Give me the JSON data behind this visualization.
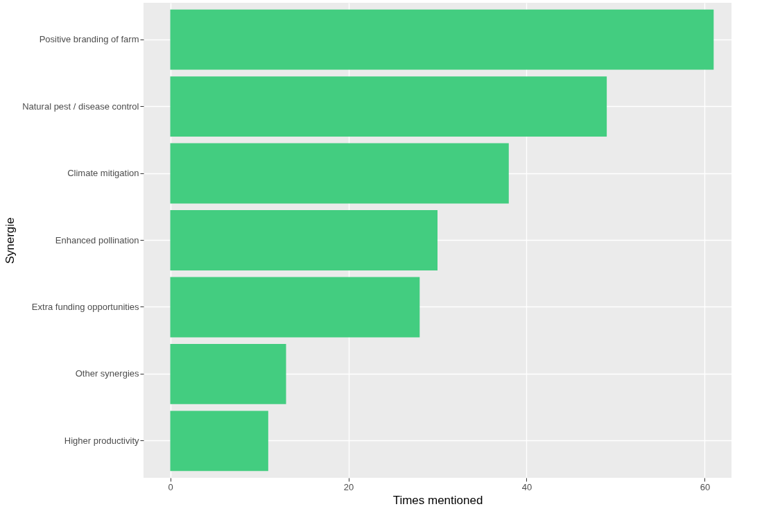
{
  "chart_data": {
    "type": "bar",
    "orientation": "horizontal",
    "xlabel": "Times mentioned",
    "ylabel": "Synergie",
    "categories": [
      "Positive branding of farm",
      "Natural pest / disease control",
      "Climate mitigation",
      "Enhanced pollination",
      "Extra funding opportunities",
      "Other synergies",
      "Higher productivity"
    ],
    "values": [
      61,
      49,
      38,
      30,
      28,
      13,
      11
    ],
    "color": "#43cd80",
    "xlim": [
      -3,
      63
    ],
    "xticks": [
      0,
      20,
      40,
      60
    ],
    "grid": true
  }
}
